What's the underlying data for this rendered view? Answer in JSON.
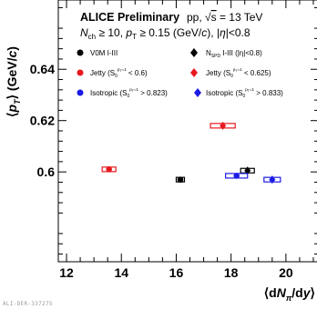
{
  "chart_data": {
    "type": "scatter",
    "title": "ALICE Preliminary",
    "system_label": "pp, √s = 13 TeV",
    "selection_line": "N_ch ≥ 10, p_T ≥ 0.15 (GeV/c), |η|<0.8",
    "xlabel": "⟨dN_π/dy⟩",
    "ylabel": "⟨p_T⟩ (GeV/c)",
    "xlim": [
      11.7,
      21.2
    ],
    "ylim": [
      0.565,
      0.667
    ],
    "x_ticks": [
      12,
      14,
      16,
      18,
      20
    ],
    "y_ticks": [
      0.6,
      0.62,
      0.64
    ],
    "grid": false,
    "legend_placement": "top",
    "series": [
      {
        "name": "V0M I-III",
        "color": "#000000",
        "marker": "circle",
        "points": [
          {
            "x": 16.15,
            "y": 0.597,
            "xerr": 0.15
          }
        ]
      },
      {
        "name": "N_SPD I-III (|η|<0.8)",
        "color": "#000000",
        "marker": "diamond",
        "points": [
          {
            "x": 18.6,
            "y": 0.6005,
            "xerr": 0.25
          }
        ]
      },
      {
        "name": "Jetty (S0^{pT=1} < 0.6)",
        "color": "#e8181f",
        "marker": "circle",
        "points": [
          {
            "x": 13.55,
            "y": 0.601,
            "xerr": 0.25
          }
        ]
      },
      {
        "name": "Jetty (S0^{pT=1} < 0.625)",
        "color": "#e8181f",
        "marker": "diamond",
        "points": [
          {
            "x": 17.7,
            "y": 0.618,
            "xerr": 0.45
          }
        ]
      },
      {
        "name": "Isotropic (S0^{pT=1} > 0.823)",
        "color": "#1b1be6",
        "marker": "circle",
        "points": [
          {
            "x": 18.2,
            "y": 0.5985,
            "xerr": 0.4
          }
        ]
      },
      {
        "name": "Isotropic (S0^{pT=1} > 0.833)",
        "color": "#1b1be6",
        "marker": "diamond",
        "points": [
          {
            "x": 19.5,
            "y": 0.597,
            "xerr": 0.3
          }
        ]
      }
    ],
    "legend_entries": [
      "V0M I-III",
      "N_SPD I-III (|η|<0.8)",
      "Jetty (S0^{pT=1} < 0.6)",
      "Jetty (S0^{pT=1} < 0.625)",
      "Isotropic (S0^{pT=1} > 0.823)",
      "Isotropic (S0^{pT=1} > 0.833)"
    ]
  },
  "watermark": "ALI-DER-337275"
}
